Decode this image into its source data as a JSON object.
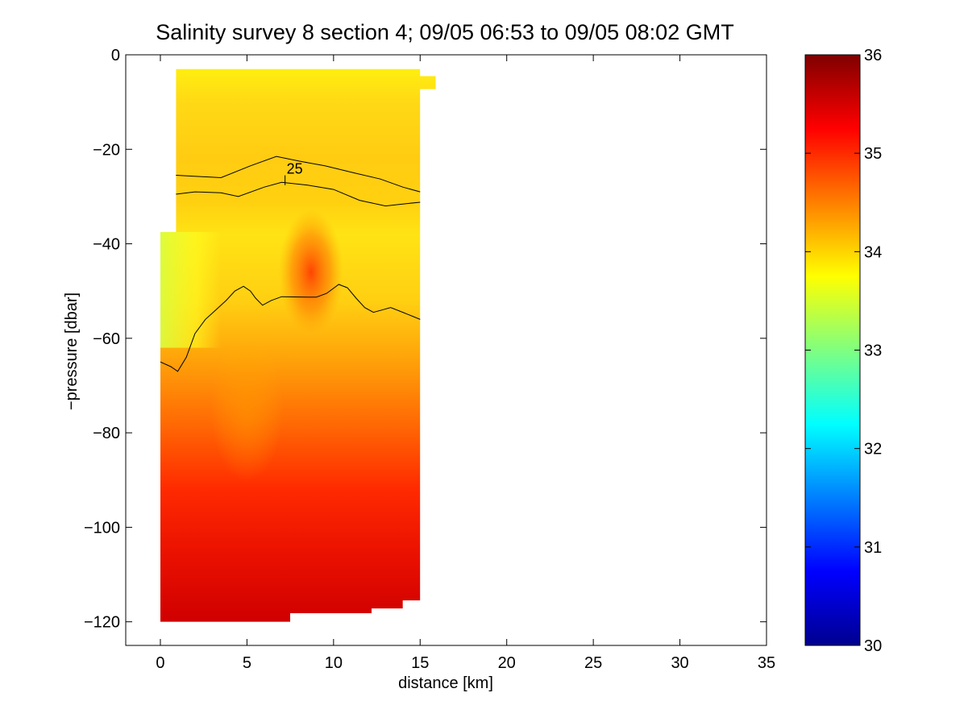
{
  "figure": {
    "title": "Salinity survey 8 section 4; 09/05 06:53 to 09/05 08:02 GMT"
  },
  "chart_data": {
    "type": "heatmap",
    "title": "Salinity survey 8 section 4; 09/05 06:53 to 09/05 08:02 GMT",
    "xlabel": "distance [km]",
    "ylabel": "−pressure [dbar]",
    "xlim": [
      -2,
      35
    ],
    "ylim": [
      -125,
      0
    ],
    "xticks": [
      0,
      5,
      10,
      15,
      20,
      25,
      30,
      35
    ],
    "xtick_labels": [
      "0",
      "5",
      "10",
      "15",
      "20",
      "25",
      "30",
      "35"
    ],
    "yticks": [
      0,
      -20,
      -40,
      -60,
      -80,
      -100,
      -120
    ],
    "ytick_labels": [
      "0",
      "−20",
      "−40",
      "−60",
      "−80",
      "−100",
      "−120"
    ],
    "colorbar": {
      "colormap": "jet",
      "range": [
        30,
        36
      ],
      "ticks": [
        30,
        31,
        32,
        33,
        34,
        35,
        36
      ],
      "tick_labels": [
        "30",
        "31",
        "32",
        "33",
        "34",
        "35",
        "36"
      ]
    },
    "contour_label": "25",
    "contour_label_at": {
      "x": 7.2,
      "y": -25.5
    },
    "data_extent": {
      "x": [
        0,
        15.9
      ],
      "y": [
        -120,
        -3
      ]
    },
    "salinity_profile": {
      "description_levels": [
        {
          "depth": -5,
          "salinity": 33.9
        },
        {
          "depth": -15,
          "salinity": 34.1
        },
        {
          "depth": -30,
          "salinity": 33.9
        },
        {
          "depth": -45,
          "salinity": 34.0
        },
        {
          "depth": -60,
          "salinity": 34.4
        },
        {
          "depth": -80,
          "salinity": 34.9
        },
        {
          "depth": -100,
          "salinity": 35.2
        },
        {
          "depth": -118,
          "salinity": 35.4
        }
      ]
    },
    "contours": [
      {
        "level": "upper",
        "x": [
          0.9,
          3.5,
          5.2,
          6.7,
          8.0,
          9.5,
          11.2,
          12.7,
          14.0,
          15.0
        ],
        "y": [
          -25.5,
          -26.0,
          -23.5,
          -21.5,
          -22.5,
          -23.5,
          -25.0,
          -26.3,
          -28.0,
          -29.0
        ]
      },
      {
        "level": "25",
        "x": [
          0.9,
          2.0,
          3.5,
          4.5,
          6.0,
          7.0,
          8.5,
          10.0,
          11.5,
          13.0,
          14.2,
          15.0
        ],
        "y": [
          -29.5,
          -29.0,
          -29.2,
          -30.0,
          -28.0,
          -27.0,
          -27.6,
          -28.5,
          -30.8,
          -32.0,
          -31.5,
          -31.2
        ]
      },
      {
        "level": "lower",
        "x": [
          0,
          0.6,
          1.0,
          1.5,
          2.0,
          2.6,
          3.2,
          3.8,
          4.3,
          4.8,
          5.2,
          5.5,
          5.9,
          6.4,
          7.0,
          8.5,
          9.0,
          9.6,
          10.3,
          10.8,
          11.3,
          11.8,
          12.3,
          12.8,
          13.3,
          14.0,
          15.0
        ],
        "y": [
          -65,
          -66,
          -67,
          -64,
          -59,
          -56,
          -54,
          -52,
          -50,
          -49,
          -50,
          -51.5,
          -53,
          -52,
          -51.2,
          -51.3,
          -51.3,
          -50.5,
          -48.6,
          -49.3,
          -51.5,
          -53.5,
          -54.5,
          -54.0,
          -53.5,
          -54.5,
          -56.0
        ]
      }
    ]
  }
}
